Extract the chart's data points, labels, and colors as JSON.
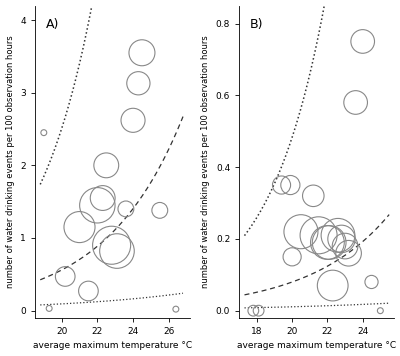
{
  "panel_A": {
    "label": "A)",
    "xlim": [
      18.5,
      27.2
    ],
    "ylim": [
      -0.1,
      4.2
    ],
    "xticks": [
      20,
      22,
      24,
      26
    ],
    "yticks": [
      0,
      1,
      2,
      3,
      4
    ],
    "xlabel": "average maximum temperature °C",
    "ylabel": "number of water drinking events per 100 observation hours",
    "scatter_x": [
      19.0,
      19.3,
      20.2,
      21.0,
      21.5,
      22.0,
      22.3,
      22.5,
      22.8,
      23.1,
      23.6,
      24.0,
      24.3,
      24.5,
      25.5,
      26.4
    ],
    "scatter_y": [
      2.45,
      0.03,
      0.47,
      1.15,
      0.27,
      1.45,
      1.55,
      2.0,
      0.9,
      0.82,
      1.4,
      2.62,
      3.13,
      3.55,
      1.38,
      0.02
    ],
    "scatter_size": [
      18,
      18,
      200,
      500,
      200,
      650,
      320,
      320,
      750,
      620,
      130,
      300,
      280,
      350,
      130,
      18
    ],
    "fit_a": 0.00562,
    "fit_b": 0.305,
    "ci_upper_a": 0.00562,
    "ci_upper_b": 0.38,
    "ci_lower_a": 0.00562,
    "ci_lower_b": 0.23,
    "pi_upper_a": 0.00562,
    "pi_upper_b": 0.47,
    "pi_lower_a": 0.00562,
    "pi_lower_b": 0.14,
    "fit_x_min": 18.8,
    "fit_x_max": 26.8
  },
  "panel_B": {
    "label": "B)",
    "xlim": [
      17.0,
      25.8
    ],
    "ylim": [
      -0.02,
      0.85
    ],
    "xticks": [
      18,
      20,
      22,
      24
    ],
    "yticks": [
      0.0,
      0.2,
      0.4,
      0.6,
      0.8
    ],
    "xlabel": "average maximum temperature °C",
    "ylabel": "number of water drinking events per 100 observation hours",
    "scatter_x": [
      17.8,
      18.1,
      19.4,
      19.9,
      20.0,
      20.5,
      21.2,
      21.5,
      22.0,
      22.1,
      22.3,
      22.6,
      22.8,
      23.0,
      23.2,
      23.6,
      24.0,
      24.5,
      25.0
    ],
    "scatter_y": [
      0.0,
      0.0,
      0.35,
      0.35,
      0.15,
      0.22,
      0.32,
      0.21,
      0.19,
      0.19,
      0.07,
      0.21,
      0.2,
      0.18,
      0.16,
      0.58,
      0.75,
      0.08,
      0.0
    ],
    "scatter_size": [
      60,
      60,
      170,
      190,
      170,
      600,
      240,
      710,
      590,
      590,
      490,
      590,
      390,
      340,
      340,
      290,
      290,
      90,
      18
    ],
    "fit_a": 0.00098,
    "fit_b": 0.31,
    "ci_upper_a": 0.00098,
    "ci_upper_b": 0.4,
    "ci_lower_a": 0.00098,
    "ci_lower_b": 0.22,
    "pi_upper_a": 0.00098,
    "pi_upper_b": 0.5,
    "pi_lower_a": 0.00098,
    "pi_lower_b": 0.12,
    "fit_x_min": 17.3,
    "fit_x_max": 25.5
  },
  "circle_edge_color": "#888888",
  "line_color": "#222222",
  "background_color": "#ffffff"
}
